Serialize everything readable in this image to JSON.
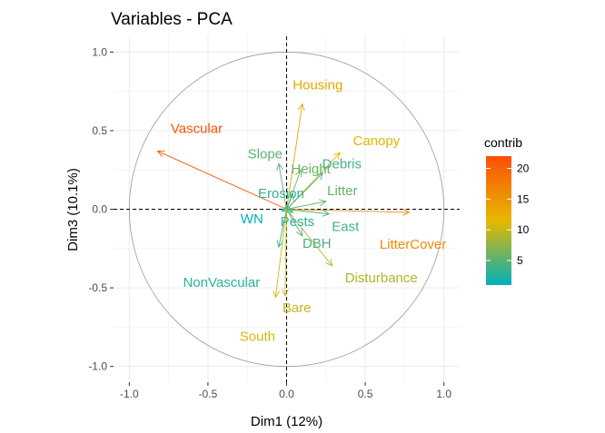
{
  "chart_data": {
    "type": "scatter",
    "title": "Variables - PCA",
    "xlabel": "Dim1 (12%)",
    "ylabel": "Dim3 (10.1%)",
    "xlim": [
      -1.1,
      1.1
    ],
    "ylim": [
      -1.1,
      1.1
    ],
    "x_ticks": [
      -1.0,
      -0.5,
      0.0,
      0.5,
      1.0
    ],
    "x_tick_labels": [
      "-1.0",
      "-0.5",
      "0.0",
      "0.5",
      "1.0"
    ],
    "y_ticks": [
      -1.0,
      -0.5,
      0.0,
      0.5,
      1.0
    ],
    "y_tick_labels": [
      "-1.0",
      "-0.5",
      "0.0",
      "0.5",
      "1.0"
    ],
    "grid": true,
    "unit_circle": true,
    "legend": {
      "title": "contrib",
      "placement": "right",
      "ticks": [
        5,
        10,
        15,
        20
      ],
      "tick_labels": [
        "5",
        "10",
        "15",
        "20"
      ],
      "range": [
        1,
        22
      ],
      "colors": [
        "#00AFBB",
        "#E7B800",
        "#FC4E07"
      ]
    },
    "variables": [
      {
        "name": "Vascular",
        "x": -0.82,
        "y": 0.37,
        "contrib": 21.5
      },
      {
        "name": "Housing",
        "x": 0.1,
        "y": 0.67,
        "contrib": 13.5
      },
      {
        "name": "Canopy",
        "x": 0.34,
        "y": 0.36,
        "contrib": 12
      },
      {
        "name": "LitterCover",
        "x": 0.78,
        "y": -0.02,
        "contrib": 16
      },
      {
        "name": "Slope",
        "x": -0.05,
        "y": 0.29,
        "contrib": 5
      },
      {
        "name": "Height",
        "x": 0.09,
        "y": 0.25,
        "contrib": 6
      },
      {
        "name": "Debris",
        "x": 0.23,
        "y": 0.23,
        "contrib": 4
      },
      {
        "name": "Erosion",
        "x": 0.04,
        "y": 0.1,
        "contrib": 3.5
      },
      {
        "name": "Litter",
        "x": 0.25,
        "y": 0.05,
        "contrib": 5.5
      },
      {
        "name": "WN",
        "x": -0.03,
        "y": -0.01,
        "contrib": 1.2
      },
      {
        "name": "Pests",
        "x": 0.04,
        "y": -0.02,
        "contrib": 3
      },
      {
        "name": "East",
        "x": 0.27,
        "y": -0.03,
        "contrib": 4
      },
      {
        "name": "DBH",
        "x": 0.1,
        "y": -0.17,
        "contrib": 4.5
      },
      {
        "name": "NonVascular",
        "x": -0.05,
        "y": -0.24,
        "contrib": 3
      },
      {
        "name": "Disturbance",
        "x": 0.29,
        "y": -0.36,
        "contrib": 9
      },
      {
        "name": "Bare",
        "x": -0.01,
        "y": -0.55,
        "contrib": 10
      },
      {
        "name": "South",
        "x": -0.07,
        "y": -0.56,
        "contrib": 11
      }
    ]
  }
}
